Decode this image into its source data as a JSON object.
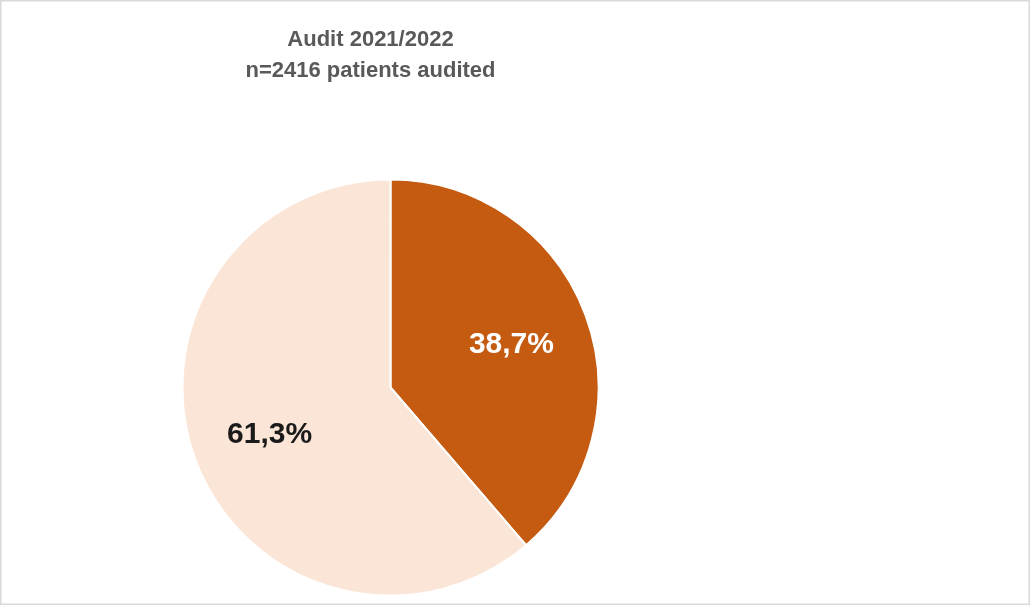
{
  "chart_data": {
    "type": "pie",
    "title": "Audit 2021/2022\nn=2416 patients audited",
    "categories": [
      null,
      null
    ],
    "values": [
      38.7,
      61.3
    ],
    "colors": [
      "#c55a11",
      "#fbe5d6"
    ],
    "value_labels": [
      "38,7%",
      "61,3%"
    ]
  }
}
